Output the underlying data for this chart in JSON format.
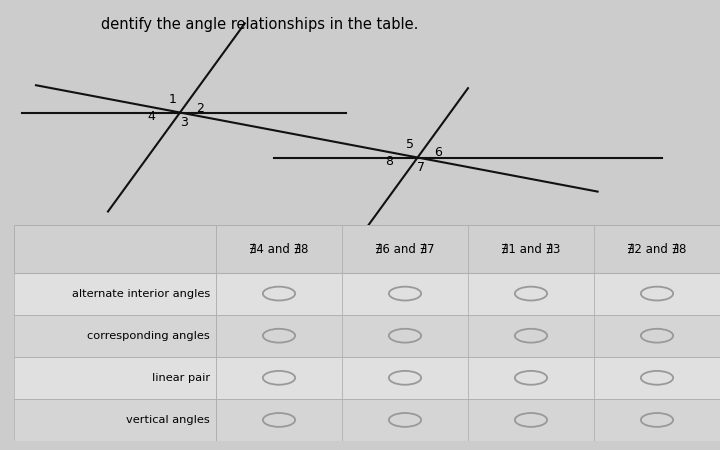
{
  "title": "dentify the angle relationships in the table.",
  "bg_color": "#cccccc",
  "col_headers": [
    "∄4 and ∄8",
    "∄6 and ∄7",
    "∄1 and ∄3",
    "∄2 and ∄8"
  ],
  "row_labels": [
    "alternate interior angles",
    "corresponding angles",
    "linear pair",
    "vertical angles"
  ],
  "n_rows": 4,
  "n_cols": 4,
  "int1": [
    2.5,
    2.5
  ],
  "int2": [
    5.8,
    1.5
  ],
  "line_color": "#111111",
  "circle_color": "#999999",
  "header_color": "#d0d0d0",
  "row_color_even": "#e0e0e0",
  "row_color_odd": "#d5d5d5",
  "grid_color": "#b0b0b0"
}
